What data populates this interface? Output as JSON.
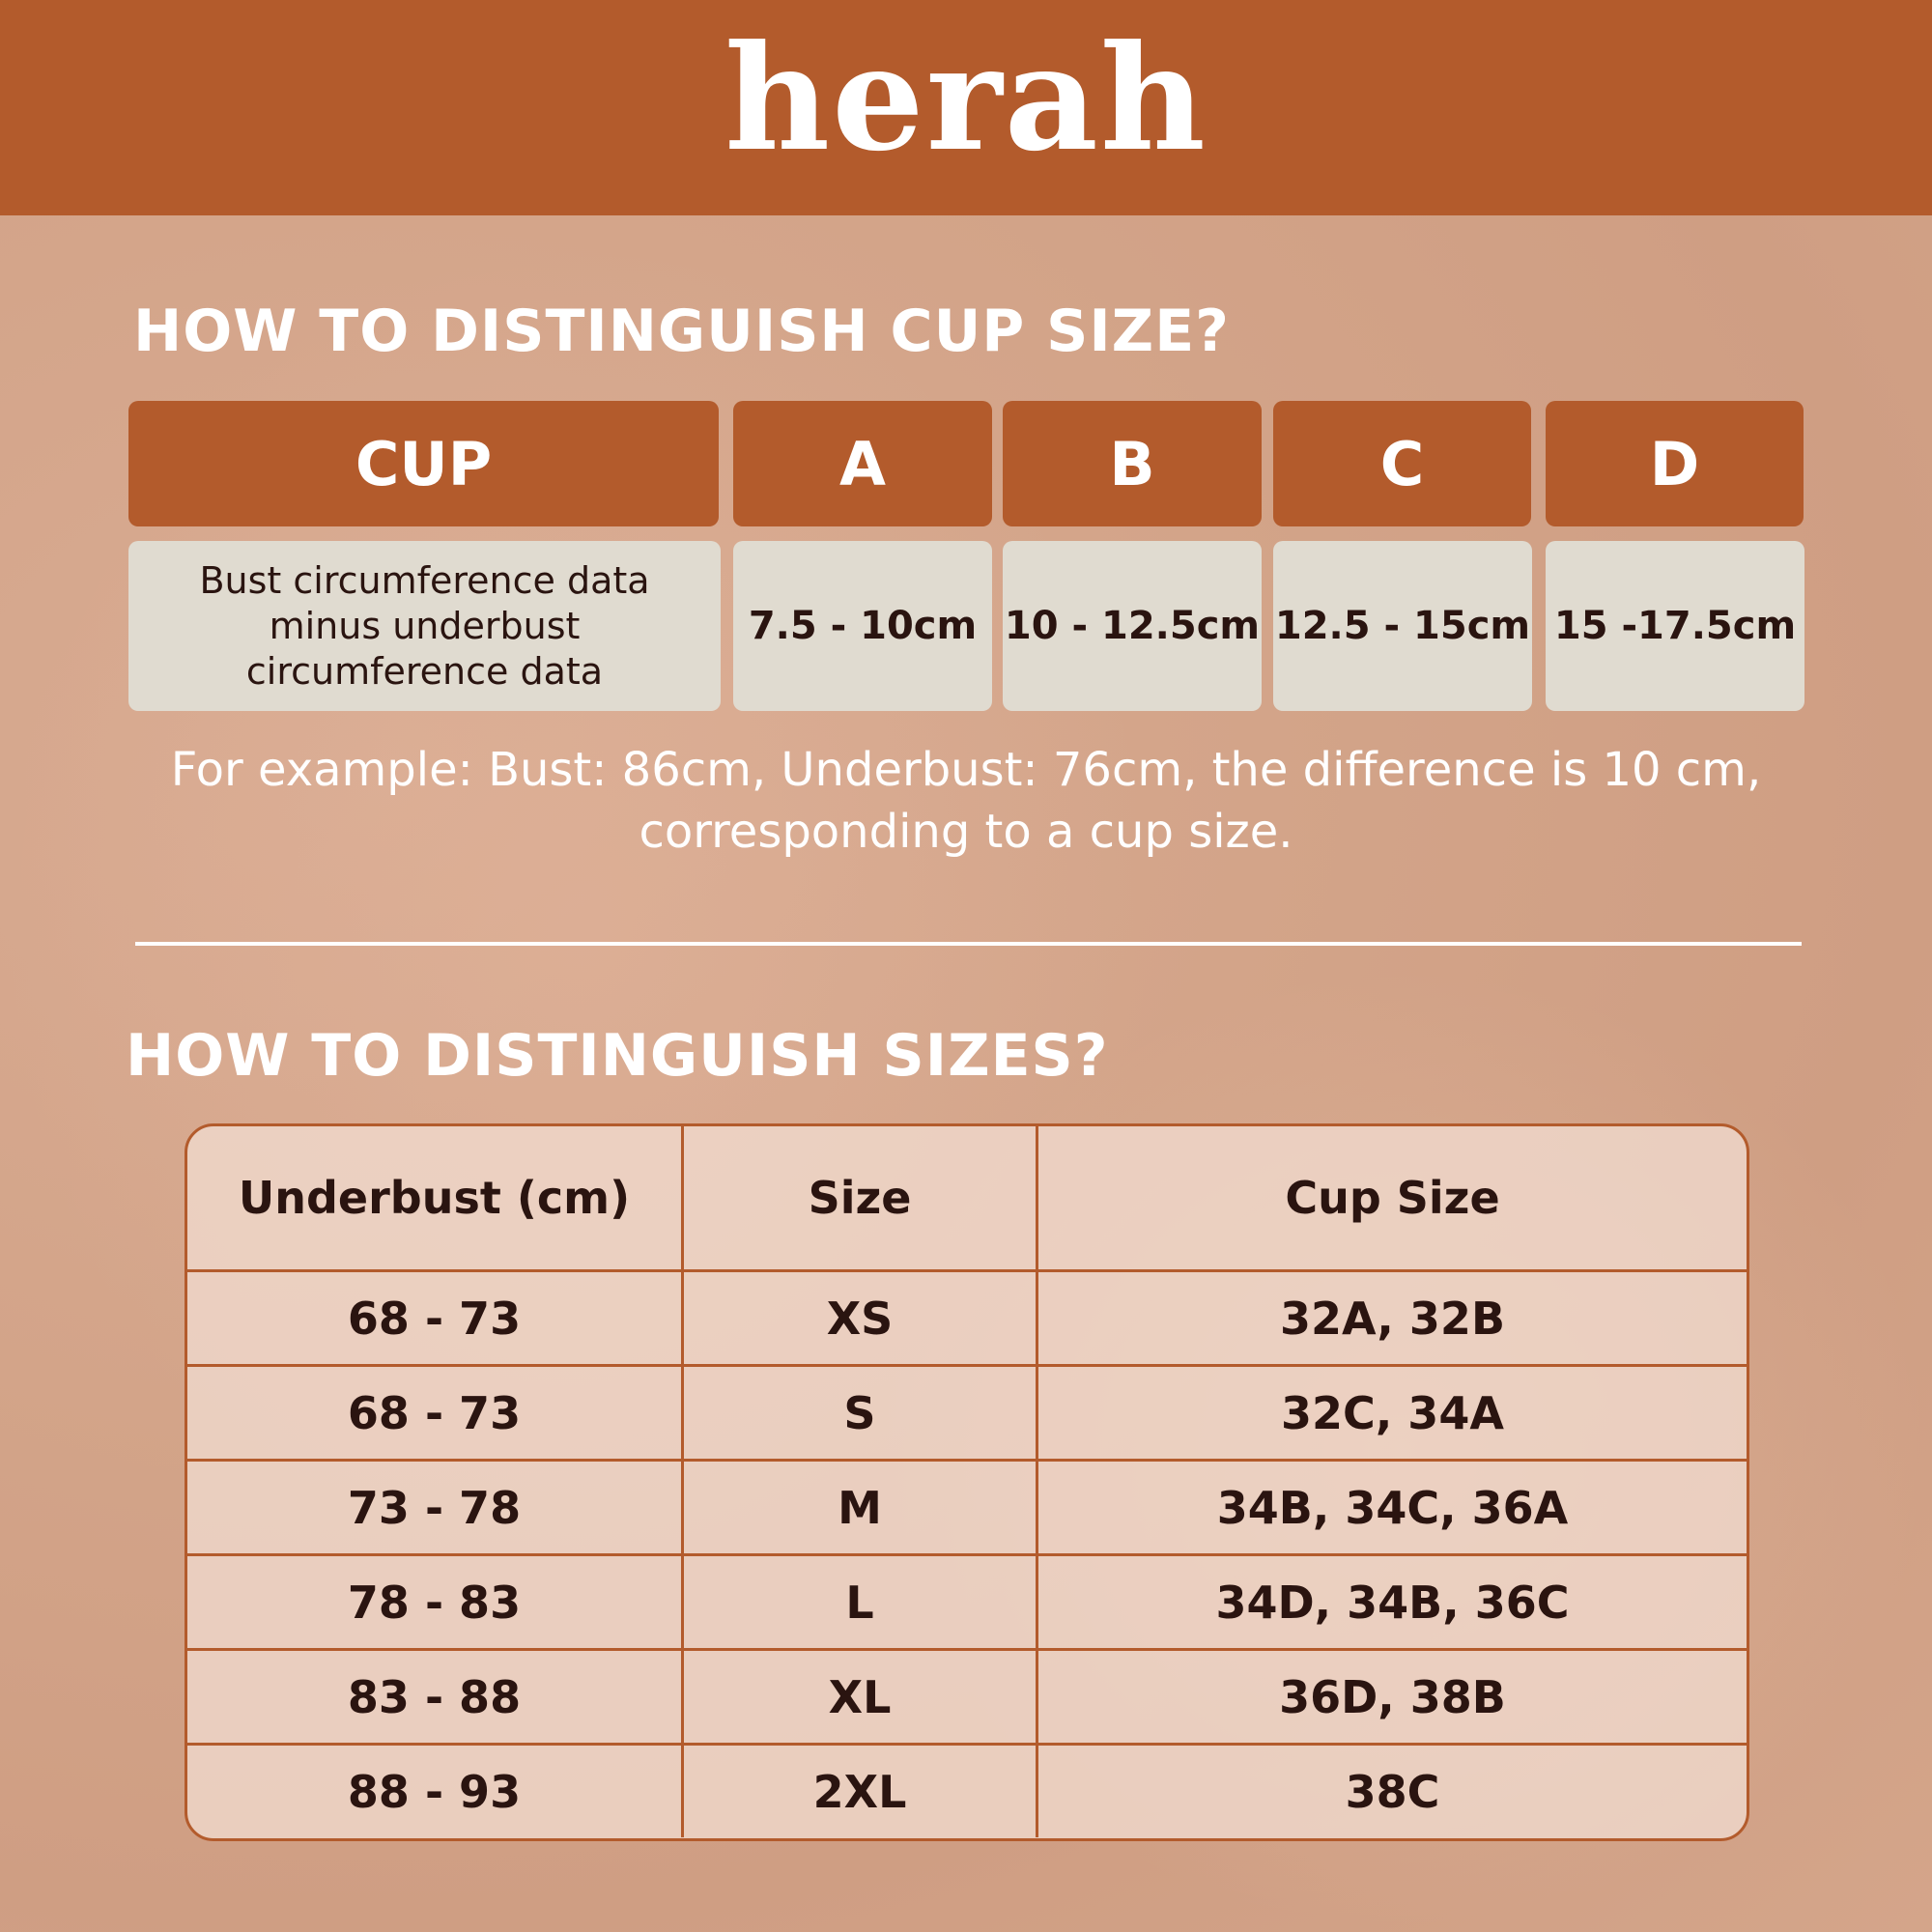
{
  "brand": {
    "logo": "herah",
    "accent": "#b35b2c"
  },
  "cup_section": {
    "title": "HOW TO DISTINGUISH CUP SIZE?",
    "headers": [
      "CUP",
      "A",
      "B",
      "C",
      "D"
    ],
    "values": [
      "Bust circumference data minus underbust circumference data",
      "7.5 - 10cm",
      "10 - 12.5cm",
      "12.5 - 15cm",
      "15 -17.5cm"
    ],
    "example_line1": "For example: Bust: 86cm, Underbust: 76cm, the difference is 10 cm,",
    "example_line2": "corresponding to a cup size."
  },
  "size_section": {
    "title": "HOW TO DISTINGUISH SIZES?",
    "columns": [
      "Underbust (cm)",
      "Size",
      "Cup Size"
    ],
    "rows": [
      [
        "68 - 73",
        "XS",
        "32A, 32B"
      ],
      [
        "68 - 73",
        "S",
        "32C, 34A"
      ],
      [
        "73 - 78",
        "M",
        "34B, 34C, 36A"
      ],
      [
        "78 - 83",
        "L",
        "34D, 34B, 36C"
      ],
      [
        "83 - 88",
        "XL",
        "36D, 38B"
      ],
      [
        "88 - 93",
        "2XL",
        "38C"
      ]
    ]
  }
}
